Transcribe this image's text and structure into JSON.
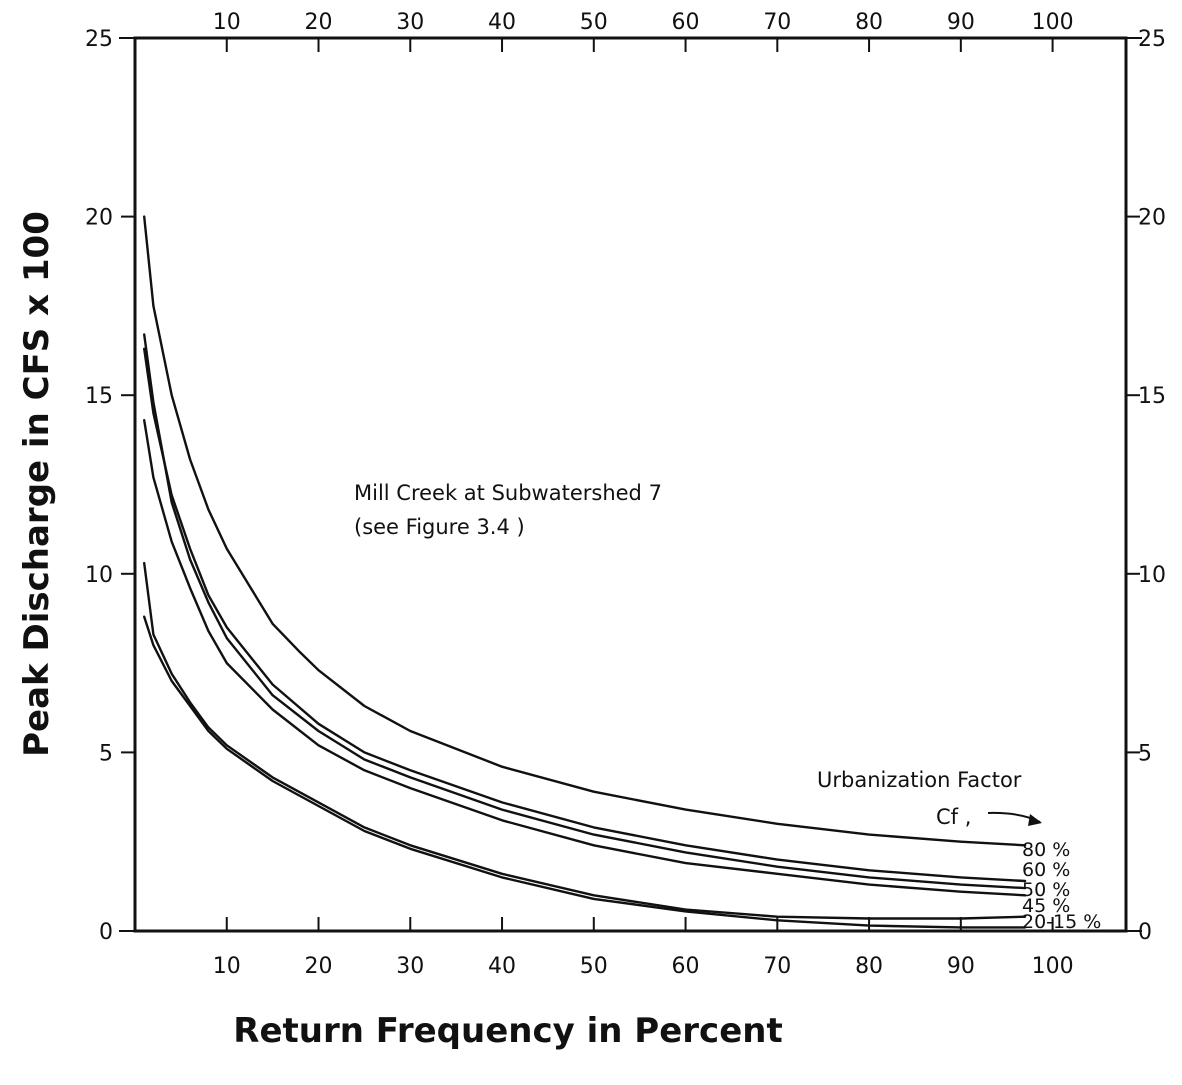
{
  "chart_data": {
    "type": "line",
    "xlabel": "Return Frequency in Percent",
    "ylabel": "Peak Discharge in CFS x 100",
    "xlim": [
      0,
      108
    ],
    "ylim": [
      0,
      25
    ],
    "x_ticks": [
      10,
      20,
      30,
      40,
      50,
      60,
      70,
      80,
      90,
      100
    ],
    "y_ticks": [
      0,
      5,
      10,
      15,
      20,
      25
    ],
    "grid": false,
    "annotations": [
      "Mill Creek at Subwatershed 7",
      "(see Figure 3.4 )"
    ],
    "legend_title": [
      "Urbanization Factor",
      "Cf ,"
    ],
    "series": [
      {
        "name": "80 %",
        "x": [
          1,
          2,
          4,
          6,
          8,
          10,
          15,
          18,
          20,
          25,
          30,
          40,
          50,
          60,
          70,
          80,
          90,
          97
        ],
        "values": [
          20.0,
          17.5,
          15.0,
          13.2,
          11.8,
          10.7,
          8.6,
          7.8,
          7.3,
          6.3,
          5.6,
          4.6,
          3.9,
          3.4,
          3.0,
          2.7,
          2.5,
          2.4
        ]
      },
      {
        "name": "60 %",
        "x": [
          1,
          2,
          4,
          6,
          8,
          10,
          15,
          20,
          25,
          30,
          40,
          50,
          60,
          70,
          80,
          90,
          97
        ],
        "values": [
          16.3,
          14.5,
          12.2,
          10.7,
          9.4,
          8.5,
          6.9,
          5.8,
          5.0,
          4.5,
          3.6,
          2.9,
          2.4,
          2.0,
          1.7,
          1.5,
          1.4
        ]
      },
      {
        "name": "50 %",
        "x": [
          1,
          2,
          4,
          6,
          8,
          10,
          15,
          20,
          25,
          30,
          40,
          50,
          60,
          70,
          80,
          90,
          97
        ],
        "values": [
          16.7,
          14.8,
          12.0,
          10.4,
          9.2,
          8.2,
          6.6,
          5.6,
          4.8,
          4.3,
          3.4,
          2.7,
          2.2,
          1.8,
          1.5,
          1.3,
          1.2
        ]
      },
      {
        "name": "45 %",
        "x": [
          1,
          2,
          4,
          6,
          8,
          10,
          15,
          20,
          25,
          30,
          40,
          50,
          60,
          70,
          80,
          90,
          97
        ],
        "values": [
          14.3,
          12.7,
          10.9,
          9.6,
          8.4,
          7.5,
          6.2,
          5.2,
          4.5,
          4.0,
          3.1,
          2.4,
          1.9,
          1.6,
          1.3,
          1.1,
          1.0
        ]
      },
      {
        "name": "20-15 %",
        "x": [
          1,
          2,
          4,
          6,
          8,
          10,
          15,
          20,
          25,
          30,
          40,
          50,
          60,
          70,
          80,
          90,
          97
        ],
        "values": [
          10.3,
          8.3,
          7.2,
          6.4,
          5.7,
          5.2,
          4.3,
          3.6,
          2.9,
          2.4,
          1.6,
          1.0,
          0.6,
          0.4,
          0.35,
          0.35,
          0.4
        ]
      },
      {
        "name": "",
        "x": [
          1,
          2,
          4,
          6,
          8,
          10,
          15,
          20,
          25,
          30,
          40,
          50,
          60,
          70,
          80,
          90,
          97
        ],
        "values": [
          8.8,
          8.0,
          7.0,
          6.3,
          5.6,
          5.1,
          4.2,
          3.5,
          2.8,
          2.3,
          1.5,
          0.9,
          0.55,
          0.3,
          0.15,
          0.1,
          0.1
        ]
      }
    ]
  }
}
